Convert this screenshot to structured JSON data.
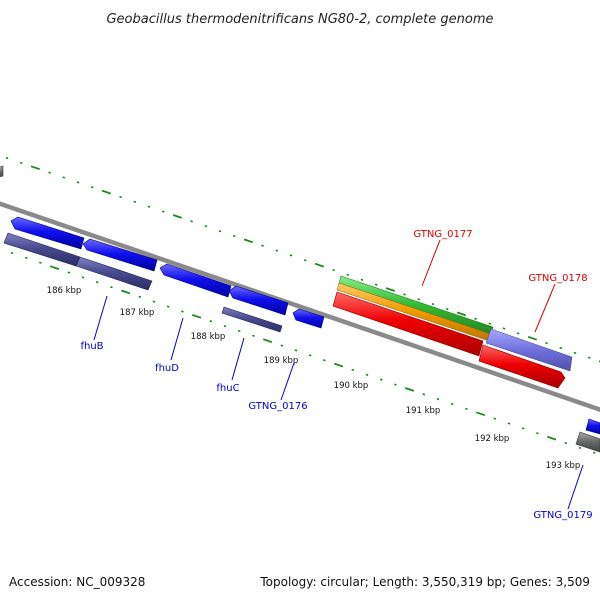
{
  "title": "Geobacillus thermodenitrificans NG80-2, complete genome",
  "footer": {
    "accession": "Accession: NC_009328",
    "summary": "Topology: circular; Length: 3,550,319 bp; Genes: 3,509"
  },
  "tick_labels": [
    "186 kbp",
    "187 kbp",
    "188 kbp",
    "189 kbp",
    "190 kbp",
    "191 kbp",
    "192 kbp",
    "193 kbp"
  ],
  "gene_labels": [
    {
      "text": "fhuB",
      "color": "#0000cc"
    },
    {
      "text": "fhuD",
      "color": "#0000cc"
    },
    {
      "text": "fhuC",
      "color": "#0000cc"
    },
    {
      "text": "GTNG_0176",
      "color": "#0000cc"
    },
    {
      "text": "GTNG_0177",
      "color": "#dd0000"
    },
    {
      "text": "GTNG_0178",
      "color": "#dd0000"
    },
    {
      "text": "GTNG_0179",
      "color": "#0000cc"
    }
  ],
  "colors": {
    "backbone": "#8a8a8a",
    "tick_marks": "#1a8a1a",
    "cds_blue": "#1010ee",
    "gene_slate": "#4a4a90",
    "rrna_red": "#ee0000",
    "feature_green": "#33bb33",
    "feature_orange": "#ee9900",
    "feature_violet": "#7070dd",
    "feature_gray": "#666666"
  }
}
